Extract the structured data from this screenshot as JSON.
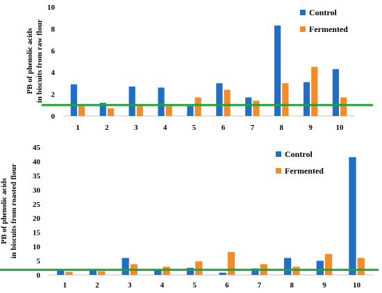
{
  "colors": {
    "control": "#1F6FC5",
    "fermented": "#F28C28",
    "threshold": "#1FA33A",
    "axis": "#BFBFBF"
  },
  "chart_data": [
    {
      "type": "bar",
      "ylabel_lines": [
        "PB of phenolic acids",
        "in biscuits from raw flour"
      ],
      "categories": [
        "1",
        "2",
        "3",
        "4",
        "5",
        "6",
        "7",
        "8",
        "9",
        "10"
      ],
      "y_ticks": [
        "0",
        "2",
        "4",
        "6",
        "8",
        "10"
      ],
      "ylim": [
        0,
        10
      ],
      "grid": false,
      "legend_position": "top-right",
      "threshold": 1,
      "series": [
        {
          "name": "Control",
          "values": [
            2.9,
            1.2,
            2.7,
            2.6,
            0.9,
            3.0,
            1.7,
            8.3,
            3.1,
            4.3
          ]
        },
        {
          "name": "Fermented",
          "values": [
            0.9,
            0.7,
            0.9,
            0.9,
            1.7,
            2.4,
            1.4,
            3.0,
            4.5,
            1.7
          ]
        }
      ]
    },
    {
      "type": "bar",
      "ylabel_lines": [
        "PB of phenolic acids",
        "in biscuits from roasted flour"
      ],
      "categories": [
        "1",
        "2",
        "3",
        "4",
        "5",
        "6",
        "7",
        "8",
        "9",
        "10"
      ],
      "y_ticks": [
        "0",
        "5",
        "10",
        "15",
        "20",
        "25",
        "30",
        "35",
        "40",
        "45"
      ],
      "ylim": [
        0,
        45
      ],
      "grid": false,
      "legend_position": "top-right",
      "threshold": 1.8,
      "series": [
        {
          "name": "Control",
          "values": [
            1.9,
            1.7,
            6.0,
            1.8,
            2.5,
            0.8,
            2.3,
            6.0,
            5.0,
            41.5
          ]
        },
        {
          "name": "Fermented",
          "values": [
            1.1,
            1.3,
            3.8,
            2.9,
            4.8,
            8.1,
            3.8,
            2.9,
            7.4,
            6.0
          ]
        }
      ]
    }
  ]
}
